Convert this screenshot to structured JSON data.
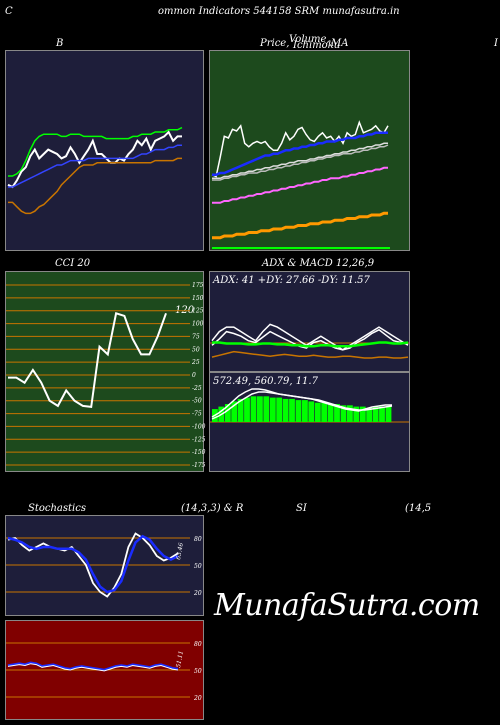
{
  "header": {
    "letter_left": "C",
    "title": "ommon  Indicators 544158  SRM munafasutra.in",
    "watermark": "MunafaSutra.com"
  },
  "colors": {
    "panel_navy": "#1e1e3a",
    "panel_green": "#1d4a1d",
    "panel_red": "#800000",
    "band_orange": "#c87400",
    "bright_green": "#00ff00",
    "blue": "#1a2cff",
    "white": "#ffffff"
  },
  "panels": {
    "bollinger": {
      "label": "B"
    },
    "price_ma": {
      "label_price": "Price,",
      "label_overlay1": "Volume,",
      "label_overlay2": "Ichimoku",
      "label_ma": "MA",
      "right_clip": "I"
    },
    "cci": {
      "label": "CCI 20",
      "value_label": "120"
    },
    "adx_macd": {
      "label": "ADX  & MACD 12,26,9",
      "adx_text": "ADX: 41 +DY: 27.66  -DY: 11.57",
      "macd_text": "572.49,  560.79,  11.7"
    },
    "stochastics": {
      "label": "Stochastics",
      "params": "(14,3,3) & R",
      "value_label": "63.46"
    },
    "rsi": {
      "label": "SI",
      "params": "(14,5",
      "value_label": "51.11"
    }
  },
  "chart_data": [
    {
      "type": "line",
      "name": "bollinger",
      "series": [
        {
          "name": "price",
          "color": "#ffffff",
          "values": [
            66,
            65,
            68,
            72,
            74,
            79,
            82,
            78,
            80,
            82,
            81,
            80,
            78,
            79,
            83,
            80,
            76,
            79,
            82,
            86,
            80,
            80,
            78,
            76,
            76,
            78,
            77,
            80,
            82,
            86,
            84,
            87,
            82,
            86,
            87,
            88,
            90,
            86,
            88,
            88
          ]
        },
        {
          "name": "upper",
          "color": "#00ff00",
          "values": [
            70,
            70,
            71,
            73,
            77,
            82,
            86,
            88,
            89,
            89,
            89,
            89,
            88,
            88,
            89,
            89,
            89,
            88,
            88,
            88,
            88,
            88,
            87,
            87,
            87,
            87,
            87,
            87,
            88,
            88,
            89,
            89,
            89,
            90,
            90,
            90,
            91,
            91,
            91,
            92
          ]
        },
        {
          "name": "middle",
          "color": "#3344ff",
          "values": [
            65,
            65,
            66,
            67,
            68,
            69,
            70,
            71,
            72,
            73,
            74,
            75,
            75,
            76,
            77,
            77,
            77,
            77,
            78,
            78,
            78,
            78,
            78,
            78,
            78,
            78,
            78,
            78,
            78,
            79,
            80,
            80,
            81,
            82,
            82,
            82,
            83,
            83,
            84,
            84
          ]
        },
        {
          "name": "lower",
          "color": "#c87400",
          "values": [
            58,
            58,
            56,
            54,
            53,
            53,
            54,
            56,
            57,
            59,
            61,
            63,
            66,
            68,
            70,
            72,
            74,
            75,
            75,
            75,
            76,
            76,
            76,
            76,
            76,
            76,
            76,
            76,
            76,
            76,
            76,
            76,
            76,
            77,
            77,
            77,
            77,
            77,
            78,
            78
          ]
        }
      ]
    },
    {
      "type": "line",
      "name": "price_ma",
      "series": [
        {
          "name": "price",
          "color": "#ffffff",
          "values": [
            68,
            67,
            78,
            90,
            89,
            94,
            93,
            96,
            86,
            84,
            86,
            87,
            86,
            87,
            84,
            82,
            82,
            86,
            92,
            88,
            90,
            94,
            95,
            91,
            88,
            87,
            90,
            92,
            89,
            90,
            87,
            90,
            86,
            92,
            90,
            91,
            98,
            92,
            93,
            94,
            96,
            93,
            92,
            96
          ]
        },
        {
          "name": "ma-blue",
          "color": "#1a2cff",
          "values": [
            68,
            68,
            69,
            69,
            70,
            71,
            72,
            73,
            74,
            75,
            76,
            77,
            78,
            79,
            79,
            80,
            80,
            81,
            82,
            82,
            83,
            83,
            84,
            84,
            85,
            85,
            86,
            86,
            87,
            87,
            87,
            88,
            88,
            89,
            89,
            89,
            90,
            90,
            91,
            91,
            92,
            92,
            92,
            92
          ]
        },
        {
          "name": "ma-white-1",
          "color": "#dddddd",
          "values": [
            66,
            66,
            66,
            67,
            67,
            68,
            68,
            69,
            69,
            70,
            70,
            71,
            71,
            72,
            72,
            73,
            73,
            74,
            74,
            75,
            75,
            76,
            76,
            76,
            77,
            77,
            78,
            78,
            79,
            79,
            80,
            80,
            81,
            81,
            82,
            82,
            83,
            83,
            84,
            84,
            85,
            85,
            86,
            86
          ]
        },
        {
          "name": "ma-white-2",
          "color": "#bbbbbb",
          "values": [
            65,
            65,
            65,
            66,
            66,
            67,
            67,
            68,
            68,
            69,
            69,
            69,
            70,
            70,
            71,
            71,
            72,
            72,
            73,
            73,
            74,
            74,
            75,
            75,
            76,
            76,
            77,
            77,
            78,
            78,
            79,
            79,
            80,
            80,
            80,
            81,
            81,
            82,
            82,
            83,
            83,
            84,
            84,
            85
          ]
        },
        {
          "name": "ma-magenta",
          "color": "#ff66ff",
          "values": [
            52,
            52,
            52,
            53,
            53,
            54,
            54,
            55,
            55,
            56,
            56,
            57,
            57,
            58,
            58,
            59,
            59,
            60,
            60,
            61,
            61,
            62,
            62,
            63,
            63,
            64,
            64,
            65,
            65,
            66,
            66,
            66,
            67,
            67,
            68,
            68,
            69,
            69,
            70,
            70,
            71,
            71,
            72,
            72
          ]
        },
        {
          "name": "ma-orange",
          "color": "#ff9900",
          "values": [
            32,
            32,
            32,
            33,
            33,
            33,
            34,
            34,
            34,
            35,
            35,
            35,
            36,
            36,
            36,
            37,
            37,
            37,
            38,
            38,
            38,
            39,
            39,
            39,
            40,
            40,
            40,
            41,
            41,
            41,
            42,
            42,
            42,
            43,
            43,
            43,
            44,
            44,
            44,
            45,
            45,
            45,
            46,
            46
          ]
        }
      ]
    },
    {
      "type": "line",
      "name": "cci",
      "ylim": [
        -175,
        175
      ],
      "y_ticks": [
        "175",
        "150",
        "125",
        "100",
        "75",
        "50",
        "25",
        "0",
        "-25",
        "-50",
        "-75",
        "-100",
        "-125",
        "-150",
        "-175"
      ],
      "series": [
        {
          "name": "cci",
          "color": "#ffffff",
          "values": [
            -5,
            -5,
            -15,
            10,
            -15,
            -50,
            -60,
            -30,
            -50,
            -60,
            -62,
            55,
            40,
            120,
            115,
            70,
            40,
            40,
            75,
            120
          ]
        }
      ]
    },
    {
      "type": "line",
      "name": "adx",
      "series": [
        {
          "name": "adx",
          "color": "#ffffff",
          "values": [
            30,
            40,
            45,
            45,
            40,
            35,
            30,
            40,
            48,
            45,
            40,
            35,
            30,
            25,
            30,
            35,
            30,
            25,
            20,
            25,
            30,
            35,
            40,
            45,
            40,
            35,
            30,
            25
          ]
        },
        {
          "name": "plus-di",
          "color": "#ffffff",
          "values": [
            25,
            32,
            40,
            38,
            35,
            30,
            28,
            34,
            40,
            36,
            32,
            28,
            24,
            22,
            28,
            30,
            26,
            22,
            20,
            22,
            28,
            32,
            38,
            42,
            36,
            30,
            28,
            26
          ]
        },
        {
          "name": "minus-di",
          "color": "#c87400",
          "values": [
            12,
            14,
            16,
            18,
            17,
            16,
            15,
            14,
            13,
            14,
            15,
            14,
            13,
            13,
            14,
            13,
            12,
            12,
            13,
            13,
            12,
            11,
            11,
            12,
            12,
            11,
            11,
            12
          ]
        },
        {
          "name": "trend",
          "color": "#00ff00",
          "values": [
            28,
            28,
            27,
            27,
            27,
            26,
            26,
            27,
            27,
            26,
            26,
            25,
            25,
            24,
            24,
            25,
            25,
            24,
            24,
            24,
            25,
            26,
            27,
            28,
            28,
            27,
            27,
            28
          ]
        }
      ]
    },
    {
      "type": "bar",
      "name": "macd",
      "series": [
        {
          "name": "histogram",
          "color": "#00ff00",
          "values": [
            10,
            12,
            14,
            16,
            18,
            19,
            20,
            20,
            20,
            19,
            19,
            18,
            18,
            17,
            17,
            16,
            15,
            15,
            14,
            14,
            13,
            13,
            12,
            12,
            11,
            12,
            12,
            12
          ]
        },
        {
          "name": "macd",
          "color": "#ffffff",
          "values": [
            5,
            9,
            14,
            20,
            26,
            30,
            33,
            33,
            32,
            30,
            28,
            27,
            26,
            25,
            24,
            23,
            21,
            19,
            17,
            15,
            13,
            12,
            11,
            13,
            15,
            16,
            17,
            17
          ]
        },
        {
          "name": "signal",
          "color": "#ffffff",
          "values": [
            3,
            6,
            10,
            15,
            20,
            24,
            28,
            30,
            30,
            29,
            28,
            27,
            26,
            25,
            24,
            23,
            22,
            20,
            18,
            16,
            14,
            13,
            12,
            12,
            13,
            14,
            15,
            16
          ]
        }
      ]
    },
    {
      "type": "line",
      "name": "stochastics",
      "ylim": [
        0,
        100
      ],
      "y_ticks": [
        "80",
        "50",
        "20"
      ],
      "series": [
        {
          "name": "k",
          "color": "#ffffff",
          "values": [
            78,
            80,
            72,
            66,
            70,
            74,
            70,
            68,
            66,
            70,
            60,
            50,
            30,
            20,
            15,
            25,
            40,
            70,
            85,
            80,
            72,
            60,
            55,
            58,
            63
          ]
        },
        {
          "name": "d",
          "color": "#1a2cff",
          "values": [
            80,
            78,
            75,
            70,
            68,
            70,
            70,
            68,
            68,
            68,
            64,
            56,
            40,
            26,
            20,
            22,
            32,
            55,
            75,
            82,
            78,
            68,
            60,
            56,
            60
          ]
        }
      ]
    },
    {
      "type": "line",
      "name": "rsi",
      "ylim": [
        0,
        100
      ],
      "y_ticks": [
        "80",
        "50",
        "20"
      ],
      "series": [
        {
          "name": "rsi",
          "color": "#1a2cff",
          "values": [
            55,
            56,
            57,
            56,
            58,
            57,
            54,
            55,
            56,
            54,
            52,
            51,
            53,
            54,
            53,
            52,
            51,
            50,
            52,
            54,
            55,
            54,
            56,
            55,
            54,
            53,
            55,
            56,
            54,
            52,
            51
          ]
        },
        {
          "name": "rsi-white",
          "color": "#ffffff",
          "values": [
            54,
            55,
            56,
            55,
            57,
            56,
            53,
            54,
            55,
            53,
            51,
            50,
            52,
            53,
            52,
            51,
            50,
            49,
            51,
            53,
            54,
            53,
            55,
            54,
            53,
            52,
            54,
            55,
            53,
            51,
            50
          ]
        }
      ]
    }
  ]
}
